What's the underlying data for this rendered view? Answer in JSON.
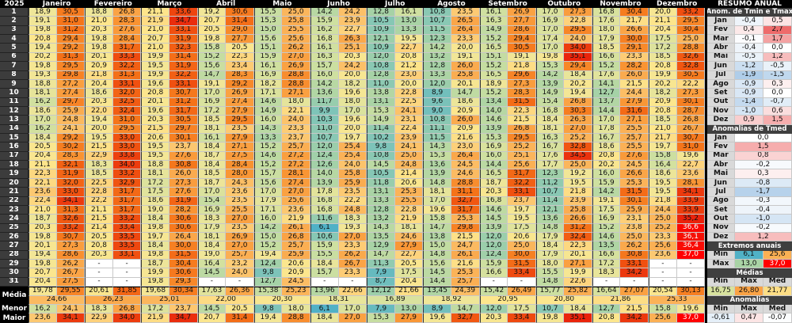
{
  "year": "2025",
  "labels": {
    "media": "Média",
    "menor": "Menor",
    "maior": "Maior"
  },
  "months": [
    {
      "name": "Janeiro",
      "tmin": [
        "18,9",
        "19,1",
        "19,8",
        "20,8",
        "19,4",
        "20,2",
        "19,8",
        "19,3",
        "18,8",
        "18,1",
        "16,2",
        "18,6",
        "17,0",
        "16,2",
        "18,4",
        "20,5",
        "20,4",
        "21,1",
        "22,3",
        "22,1",
        "23,6",
        "22,4",
        "21,0",
        "18,7",
        "20,3",
        "19,8",
        "20,1",
        "19,4",
        "19,8",
        "20,7",
        "20,4"
      ],
      "tmax": [
        "30,5",
        "31,0",
        "31,2",
        "29,4",
        "29,2",
        "31,3",
        "29,5",
        "29,8",
        "27,2",
        "27,4",
        "29,7",
        "25,9",
        "24,8",
        "24,1",
        "29,2",
        "30,2",
        "28,3",
        "32,1",
        "31,9",
        "32,0",
        "33,0",
        "34,1",
        "31,3",
        "32,6",
        "33,2",
        "30,7",
        "27,3",
        "28,6",
        "26,2",
        "26,7",
        "27,5"
      ],
      "media_min": "19,78",
      "media_max": "29,55",
      "media_med": "24,66",
      "menor_min": "16,2",
      "menor_max": "24,1",
      "maior_min": "23,6",
      "maior_max": "34,1"
    },
    {
      "name": "Fevereiro",
      "tmin": [
        "18,8",
        "21,0",
        "20,3",
        "19,8",
        "19,8",
        "20,1",
        "20,9",
        "21,8",
        "20,4",
        "18,6",
        "20,3",
        "22,0",
        "19,4",
        "20,0",
        "19,5",
        "21,5",
        "22,9",
        "18,3",
        "18,5",
        "22,5",
        "22,8",
        "22,2",
        "21,1",
        "21,5",
        "21,4",
        "20,5",
        "20,8",
        "20,3",
        "-",
        "-",
        "-"
      ],
      "tmax": [
        "26,8",
        "28,3",
        "27,6",
        "28,4",
        "31,7",
        "33,3",
        "32,2",
        "31,3",
        "33,1",
        "32,0",
        "32,5",
        "32,4",
        "31,0",
        "29,5",
        "33,0",
        "33,0",
        "33,8",
        "34,0",
        "33,2",
        "32,9",
        "31,7",
        "31,7",
        "31,7",
        "33,2",
        "33,4",
        "33,5",
        "33,5",
        "33,1",
        "-",
        "-",
        "-"
      ],
      "media_min": "20,61",
      "media_max": "31,85",
      "media_med": "26,23",
      "menor_min": "18,3",
      "menor_max": "26,8",
      "maior_min": "22,9",
      "maior_max": "34,0"
    },
    {
      "name": "Março",
      "tmin": [
        "21,1",
        "21,9",
        "21,0",
        "20,7",
        "21,0",
        "19,9",
        "19,5",
        "19,9",
        "19,6",
        "20,8",
        "20,1",
        "19,6",
        "20,3",
        "21,5",
        "20,6",
        "19,5",
        "19,5",
        "18,8",
        "18,1",
        "17,2",
        "17,5",
        "18,6",
        "19,0",
        "18,4",
        "19,8",
        "19,7",
        "18,4",
        "19,8",
        "18,7",
        "19,9",
        "19,8"
      ],
      "tmax": [
        "33,6",
        "34,7",
        "33,1",
        "31,9",
        "32,3",
        "31,4",
        "31,9",
        "32,2",
        "33,1",
        "30,7",
        "31,2",
        "31,7",
        "30,5",
        "29,7",
        "30,1",
        "23,7",
        "27,6",
        "30,8",
        "26,0",
        "27,3",
        "27,6",
        "31,9",
        "28,2",
        "30,6",
        "30,6",
        "26,4",
        "30,0",
        "31,5",
        "30,4",
        "30,6",
        "29,3"
      ],
      "media_min": "19,68",
      "media_max": "30,34",
      "media_med": "25,01",
      "menor_min": "17,2",
      "menor_max": "23,7",
      "maior_min": "21,9",
      "maior_max": "34,7"
    },
    {
      "name": "Abril",
      "tmin": [
        "19,2",
        "20,7",
        "20,5",
        "19,8",
        "15,8",
        "15,2",
        "15,6",
        "14,7",
        "19,1",
        "17,0",
        "16,9",
        "17,2",
        "18,5",
        "18,1",
        "16,1",
        "18,4",
        "18,7",
        "18,4",
        "18,5",
        "18,7",
        "17,0",
        "15,4",
        "16,9",
        "18,3",
        "17,9",
        "18,1",
        "18,4",
        "19,0",
        "16,4",
        "14,5",
        "-"
      ],
      "tmax": [
        "30,6",
        "31,4",
        "29,0",
        "27,7",
        "20,5",
        "22,3",
        "23,4",
        "28,3",
        "29,2",
        "26,9",
        "27,4",
        "27,9",
        "29,5",
        "23,5",
        "27,9",
        "27,1",
        "27,5",
        "28,4",
        "28,0",
        "24,3",
        "23,6",
        "23,5",
        "25,5",
        "27,0",
        "23,5",
        "26,9",
        "27,0",
        "25,7",
        "23,2",
        "24,0",
        "-"
      ],
      "media_min": "17,63",
      "media_max": "26,36",
      "media_med": "22,00",
      "menor_min": "14,5",
      "menor_max": "20,5",
      "maior_min": "20,7",
      "maior_max": "31,4"
    },
    {
      "name": "Maio",
      "tmin": [
        "15,5",
        "15,3",
        "15,0",
        "15,6",
        "15,1",
        "15,9",
        "16,1",
        "16,9",
        "18,2",
        "17,1",
        "14,6",
        "14,9",
        "16,0",
        "14,3",
        "13,3",
        "15,2",
        "14,6",
        "15,2",
        "15,7",
        "15,6",
        "17,0",
        "17,9",
        "17,1",
        "16,0",
        "14,2",
        "15,0",
        "15,2",
        "19,4",
        "12,4",
        "9,8",
        "12,7"
      ],
      "tmax": [
        "25,0",
        "25,8",
        "25,5",
        "25,6",
        "26,2",
        "27,0",
        "26,9",
        "28,8",
        "28,8",
        "27,1",
        "18,0",
        "22,1",
        "24,0",
        "23,3",
        "23,7",
        "25,7",
        "27,2",
        "27,2",
        "28,1",
        "27,4",
        "27,0",
        "25,6",
        "23,6",
        "21,9",
        "26,1",
        "26,8",
        "25,7",
        "25,9",
        "20,6",
        "20,9",
        "24,5"
      ],
      "media_min": "15,38",
      "media_max": "25,23",
      "media_med": "20,30",
      "menor_min": "9,8",
      "menor_max": "18,0",
      "maior_min": "19,4",
      "maior_max": "28,8"
    },
    {
      "name": "Junho",
      "tmin": [
        "14,2",
        "15,9",
        "16,2",
        "16,8",
        "16,1",
        "16,3",
        "15,7",
        "16,0",
        "14,2",
        "13,6",
        "11,7",
        "9,9",
        "10,3",
        "11,0",
        "10,7",
        "12,0",
        "12,4",
        "12,6",
        "14,0",
        "13,9",
        "17,8",
        "16,8",
        "16,8",
        "11,6",
        "6,1",
        "10,6",
        "15,9",
        "15,5",
        "18,4",
        "15,7",
        "-"
      ],
      "tmax": [
        "24,2",
        "23,9",
        "22,7",
        "26,3",
        "25,1",
        "20,3",
        "24,2",
        "20,0",
        "18,2",
        "19,6",
        "18,0",
        "17,0",
        "19,6",
        "20,0",
        "19,7",
        "25,4",
        "25,4",
        "24,0",
        "25,8",
        "25,9",
        "23,5",
        "22,2",
        "24,8",
        "18,3",
        "19,3",
        "27,0",
        "23,3",
        "26,2",
        "26,7",
        "23,3",
        "-"
      ],
      "media_min": "13,96",
      "media_max": "22,66",
      "media_med": "18,31",
      "menor_min": "6,1",
      "menor_max": "17,0",
      "maior_min": "18,4",
      "maior_max": "27,0"
    },
    {
      "name": "Julho",
      "tmin": [
        "12,8",
        "10,5",
        "10,9",
        "12,1",
        "10,9",
        "12,0",
        "10,8",
        "12,8",
        "11,0",
        "13,8",
        "13,1",
        "15,3",
        "14,9",
        "11,4",
        "10,2",
        "9,8",
        "10,8",
        "14,5",
        "10,5",
        "11,8",
        "13,1",
        "13,3",
        "12,8",
        "13,2",
        "14,3",
        "13,5",
        "12,9",
        "14,7",
        "11,3",
        "7,9",
        "8,7"
      ],
      "tmax": [
        "16,1",
        "13,0",
        "13,3",
        "19,5",
        "22,7",
        "20,8",
        "21,2",
        "23,0",
        "20,0",
        "22,8",
        "22,5",
        "24,1",
        "23,1",
        "22,4",
        "23,9",
        "24,1",
        "25,0",
        "24,8",
        "21,4",
        "20,6",
        "25,3",
        "25,5",
        "22,8",
        "21,9",
        "18,1",
        "24,6",
        "27,9",
        "22,7",
        "20,5",
        "17,5",
        "20,4"
      ],
      "media_min": "12,12",
      "media_max": "21,66",
      "media_med": "16,89",
      "menor_min": "7,9",
      "menor_max": "13,0",
      "maior_min": "15,3",
      "maior_max": "27,9"
    },
    {
      "name": "Agosto",
      "tmin": [
        "10,8",
        "10,7",
        "11,5",
        "12,3",
        "14,2",
        "13,2",
        "12,8",
        "13,3",
        "12,0",
        "8,9",
        "9,6",
        "9,0",
        "10,8",
        "11,1",
        "11,5",
        "14,3",
        "15,3",
        "13,6",
        "13,9",
        "14,8",
        "18,1",
        "17,0",
        "19,6",
        "15,8",
        "14,7",
        "13,8",
        "15,0",
        "14,8",
        "15,6",
        "14,5",
        "14,4"
      ],
      "tmax": [
        "23,5",
        "26,5",
        "26,4",
        "23,3",
        "20,0",
        "19,1",
        "26,0",
        "25,8",
        "20,1",
        "14,7",
        "18,6",
        "20,9",
        "26,0",
        "20,9",
        "21,6",
        "23,0",
        "26,4",
        "24,5",
        "24,6",
        "28,8",
        "31,1",
        "32,7",
        "31,7",
        "25,3",
        "29,8",
        "21,5",
        "24,7",
        "26,1",
        "21,6",
        "25,3",
        "25,7"
      ],
      "media_min": "13,45",
      "media_max": "24,39",
      "media_med": "18,92",
      "menor_min": "8,9",
      "menor_max": "14,7",
      "maior_min": "19,6",
      "maior_max": "32,7"
    },
    {
      "name": "Setembro",
      "tmin": [
        "16,1",
        "16,3",
        "14,9",
        "15,2",
        "16,5",
        "15,1",
        "15,2",
        "16,5",
        "18,9",
        "15,2",
        "13,4",
        "14,0",
        "14,6",
        "13,9",
        "15,3",
        "16,9",
        "16,0",
        "14,4",
        "16,5",
        "18,7",
        "20,3",
        "16,8",
        "14,6",
        "14,5",
        "13,9",
        "12,0",
        "12,0",
        "12,4",
        "15,9",
        "16,6",
        "-"
      ],
      "tmax": [
        "26,9",
        "27,7",
        "28,6",
        "29,4",
        "30,5",
        "19,1",
        "21,8",
        "29,6",
        "27,3",
        "28,3",
        "31,5",
        "22,3",
        "21,5",
        "26,8",
        "29,5",
        "25,2",
        "25,1",
        "25,6",
        "31,7",
        "32,2",
        "33,1",
        "23,7",
        "19,7",
        "19,5",
        "17,5",
        "20,6",
        "25,0",
        "30,0",
        "31,5",
        "33,4",
        "-"
      ],
      "media_min": "15,42",
      "media_max": "26,49",
      "media_med": "20,95",
      "menor_min": "12,0",
      "menor_max": "17,5",
      "maior_min": "20,3",
      "maior_max": "33,4"
    },
    {
      "name": "Outubro",
      "tmin": [
        "17,0",
        "16,9",
        "17,0",
        "17,4",
        "17,0",
        "19,8",
        "15,3",
        "14,2",
        "13,9",
        "14,9",
        "15,4",
        "16,8",
        "18,4",
        "18,1",
        "16,3",
        "16,7",
        "17,6",
        "17,7",
        "12,3",
        "11,2",
        "10,7",
        "11,4",
        "12,1",
        "13,6",
        "14,8",
        "17,9",
        "18,4",
        "17,9",
        "18,0",
        "15,5",
        "14,8"
      ],
      "tmax": [
        "27,3",
        "22,8",
        "29,5",
        "24,0",
        "34,0",
        "35,1",
        "29,4",
        "18,4",
        "20,2",
        "19,4",
        "26,8",
        "30,3",
        "26,3",
        "27,0",
        "25,2",
        "32,8",
        "34,5",
        "25,0",
        "19,2",
        "19,5",
        "21,8",
        "23,9",
        "25,8",
        "26,6",
        "31,2",
        "32,4",
        "22,3",
        "20,1",
        "27,1",
        "19,9",
        "22,6"
      ],
      "media_min": "15,77",
      "media_max": "25,82",
      "media_med": "20,80",
      "menor_min": "10,7",
      "menor_max": "18,4",
      "maior_min": "19,8",
      "maior_max": "35,1"
    },
    {
      "name": "Novembro",
      "tmin": [
        "16,8",
        "17,6",
        "18,0",
        "17,9",
        "18,5",
        "16,6",
        "15,2",
        "17,6",
        "14,1",
        "12,7",
        "13,7",
        "14,4",
        "17,0",
        "17,8",
        "16,7",
        "18,6",
        "20,8",
        "20,2",
        "16,0",
        "15,9",
        "14,2",
        "19,1",
        "17,5",
        "16,9",
        "15,2",
        "14,6",
        "13,5",
        "16,6",
        "17,2",
        "18,3",
        "-"
      ],
      "tmax": [
        "30,4",
        "21,7",
        "26,6",
        "30,0",
        "29,1",
        "23,3",
        "28,2",
        "26,0",
        "21,5",
        "24,4",
        "27,9",
        "31,6",
        "27,1",
        "25,5",
        "25,7",
        "25,5",
        "27,6",
        "24,5",
        "26,6",
        "25,3",
        "31,5",
        "30,1",
        "25,9",
        "23,1",
        "23,8",
        "25,0",
        "26,2",
        "30,8",
        "33,1",
        "34,2",
        "-"
      ],
      "media_min": "16,64",
      "media_max": "27,07",
      "media_med": "21,86",
      "menor_min": "12,7",
      "menor_max": "21,5",
      "maior_min": "20,8",
      "maior_max": "34,2"
    },
    {
      "name": "Dezembro",
      "tmin": [
        "20,0",
        "21,1",
        "20,4",
        "17,5",
        "17,2",
        "18,5",
        "20,8",
        "19,9",
        "20,2",
        "18,2",
        "20,9",
        "20,8",
        "18,5",
        "21,0",
        "21,7",
        "19,7",
        "15,8",
        "16,4",
        "18,6",
        "19,5",
        "19,5",
        "21,8",
        "24,4",
        "25,0",
        "25,2",
        "23,3",
        "25,6",
        "23,6",
        "-",
        "-",
        "-"
      ],
      "tmax": [
        "33,2",
        "29,5",
        "30,4",
        "25,0",
        "28,8",
        "32,6",
        "32,8",
        "30,5",
        "22,2",
        "27,3",
        "30,1",
        "28,7",
        "26,8",
        "26,7",
        "30,7",
        "31,0",
        "19,6",
        "22,7",
        "23,6",
        "28,1",
        "34,1",
        "33,9",
        "33,9",
        "35,2",
        "36,6",
        "36,1",
        "36,4",
        "37,0",
        "-",
        "-",
        "-"
      ],
      "media_min": "20,54",
      "media_max": "30,13",
      "media_med": "25,33",
      "menor_min": "15,8",
      "menor_max": "19,6",
      "maior_min": "25,6",
      "maior_max": "37,0"
    }
  ],
  "summary": {
    "title": "RESUMO ANUAL",
    "anom_minmax_title": "Anom. de Tmin e Tmax",
    "anom_minmax": [
      {
        "m": "Jan",
        "min": "-0,4",
        "max": "0,5"
      },
      {
        "m": "Fev",
        "min": "0,4",
        "max": "2,7"
      },
      {
        "m": "Mar",
        "min": "-0,1",
        "max": "1,7"
      },
      {
        "m": "Abr",
        "min": "-0,4",
        "max": "0,0"
      },
      {
        "m": "Mai",
        "min": "-0,5",
        "max": "1,2"
      },
      {
        "m": "Jun",
        "min": "-1,2",
        "max": "-0,5"
      },
      {
        "m": "Jul",
        "min": "-1,9",
        "max": "-1,5"
      },
      {
        "m": "Ago",
        "min": "-0,9",
        "max": "0,3"
      },
      {
        "m": "Set",
        "min": "-0,9",
        "max": "0,0"
      },
      {
        "m": "Out",
        "min": "-1,4",
        "max": "-0,7"
      },
      {
        "m": "Nov",
        "min": "-1,0",
        "max": "0,6"
      },
      {
        "m": "Dez",
        "min": "0,9",
        "max": "1,5"
      }
    ],
    "anom_med_title": "Anomalias de Tmed",
    "anom_med": [
      {
        "m": "Jan",
        "v": "0,0"
      },
      {
        "m": "Fev",
        "v": "1,5"
      },
      {
        "m": "Mar",
        "v": "0,8"
      },
      {
        "m": "Abr",
        "v": "-0,2"
      },
      {
        "m": "Mai",
        "v": "0,3"
      },
      {
        "m": "Jun",
        "v": "-0,8"
      },
      {
        "m": "Jul",
        "v": "-1,7"
      },
      {
        "m": "Ago",
        "v": "-0,3"
      },
      {
        "m": "Set",
        "v": "-0,4"
      },
      {
        "m": "Out",
        "v": "-1,0"
      },
      {
        "m": "Nov",
        "v": "-0,2"
      },
      {
        "m": "Dez",
        "v": "1,2"
      }
    ],
    "extremos_title": "Extremos anuais",
    "extremos": [
      {
        "label": "Min",
        "a": "6,1",
        "b": "25,6"
      },
      {
        "label": "Max",
        "a": "13,0",
        "b": "37,0"
      }
    ],
    "medias_title": "Médias",
    "col_headers": [
      "Min",
      "Max",
      "Med"
    ],
    "medias": [
      "16,75",
      "26,80",
      "21,77"
    ],
    "anomalias_title": "Anomalias",
    "anomalias": [
      "-0,61",
      "0,47",
      "-0,07"
    ]
  },
  "colors": {
    "header_bg": "#000000",
    "day_bg": "#3c3c3c",
    "section_bg": "#3f3f3f",
    "month_label_bg": "#d9d9d9",
    "cold": "#4fb0c6",
    "hot": "#ff0000",
    "anom_neg": "#8db8e0",
    "anom_pos": "#ee6b6b"
  }
}
